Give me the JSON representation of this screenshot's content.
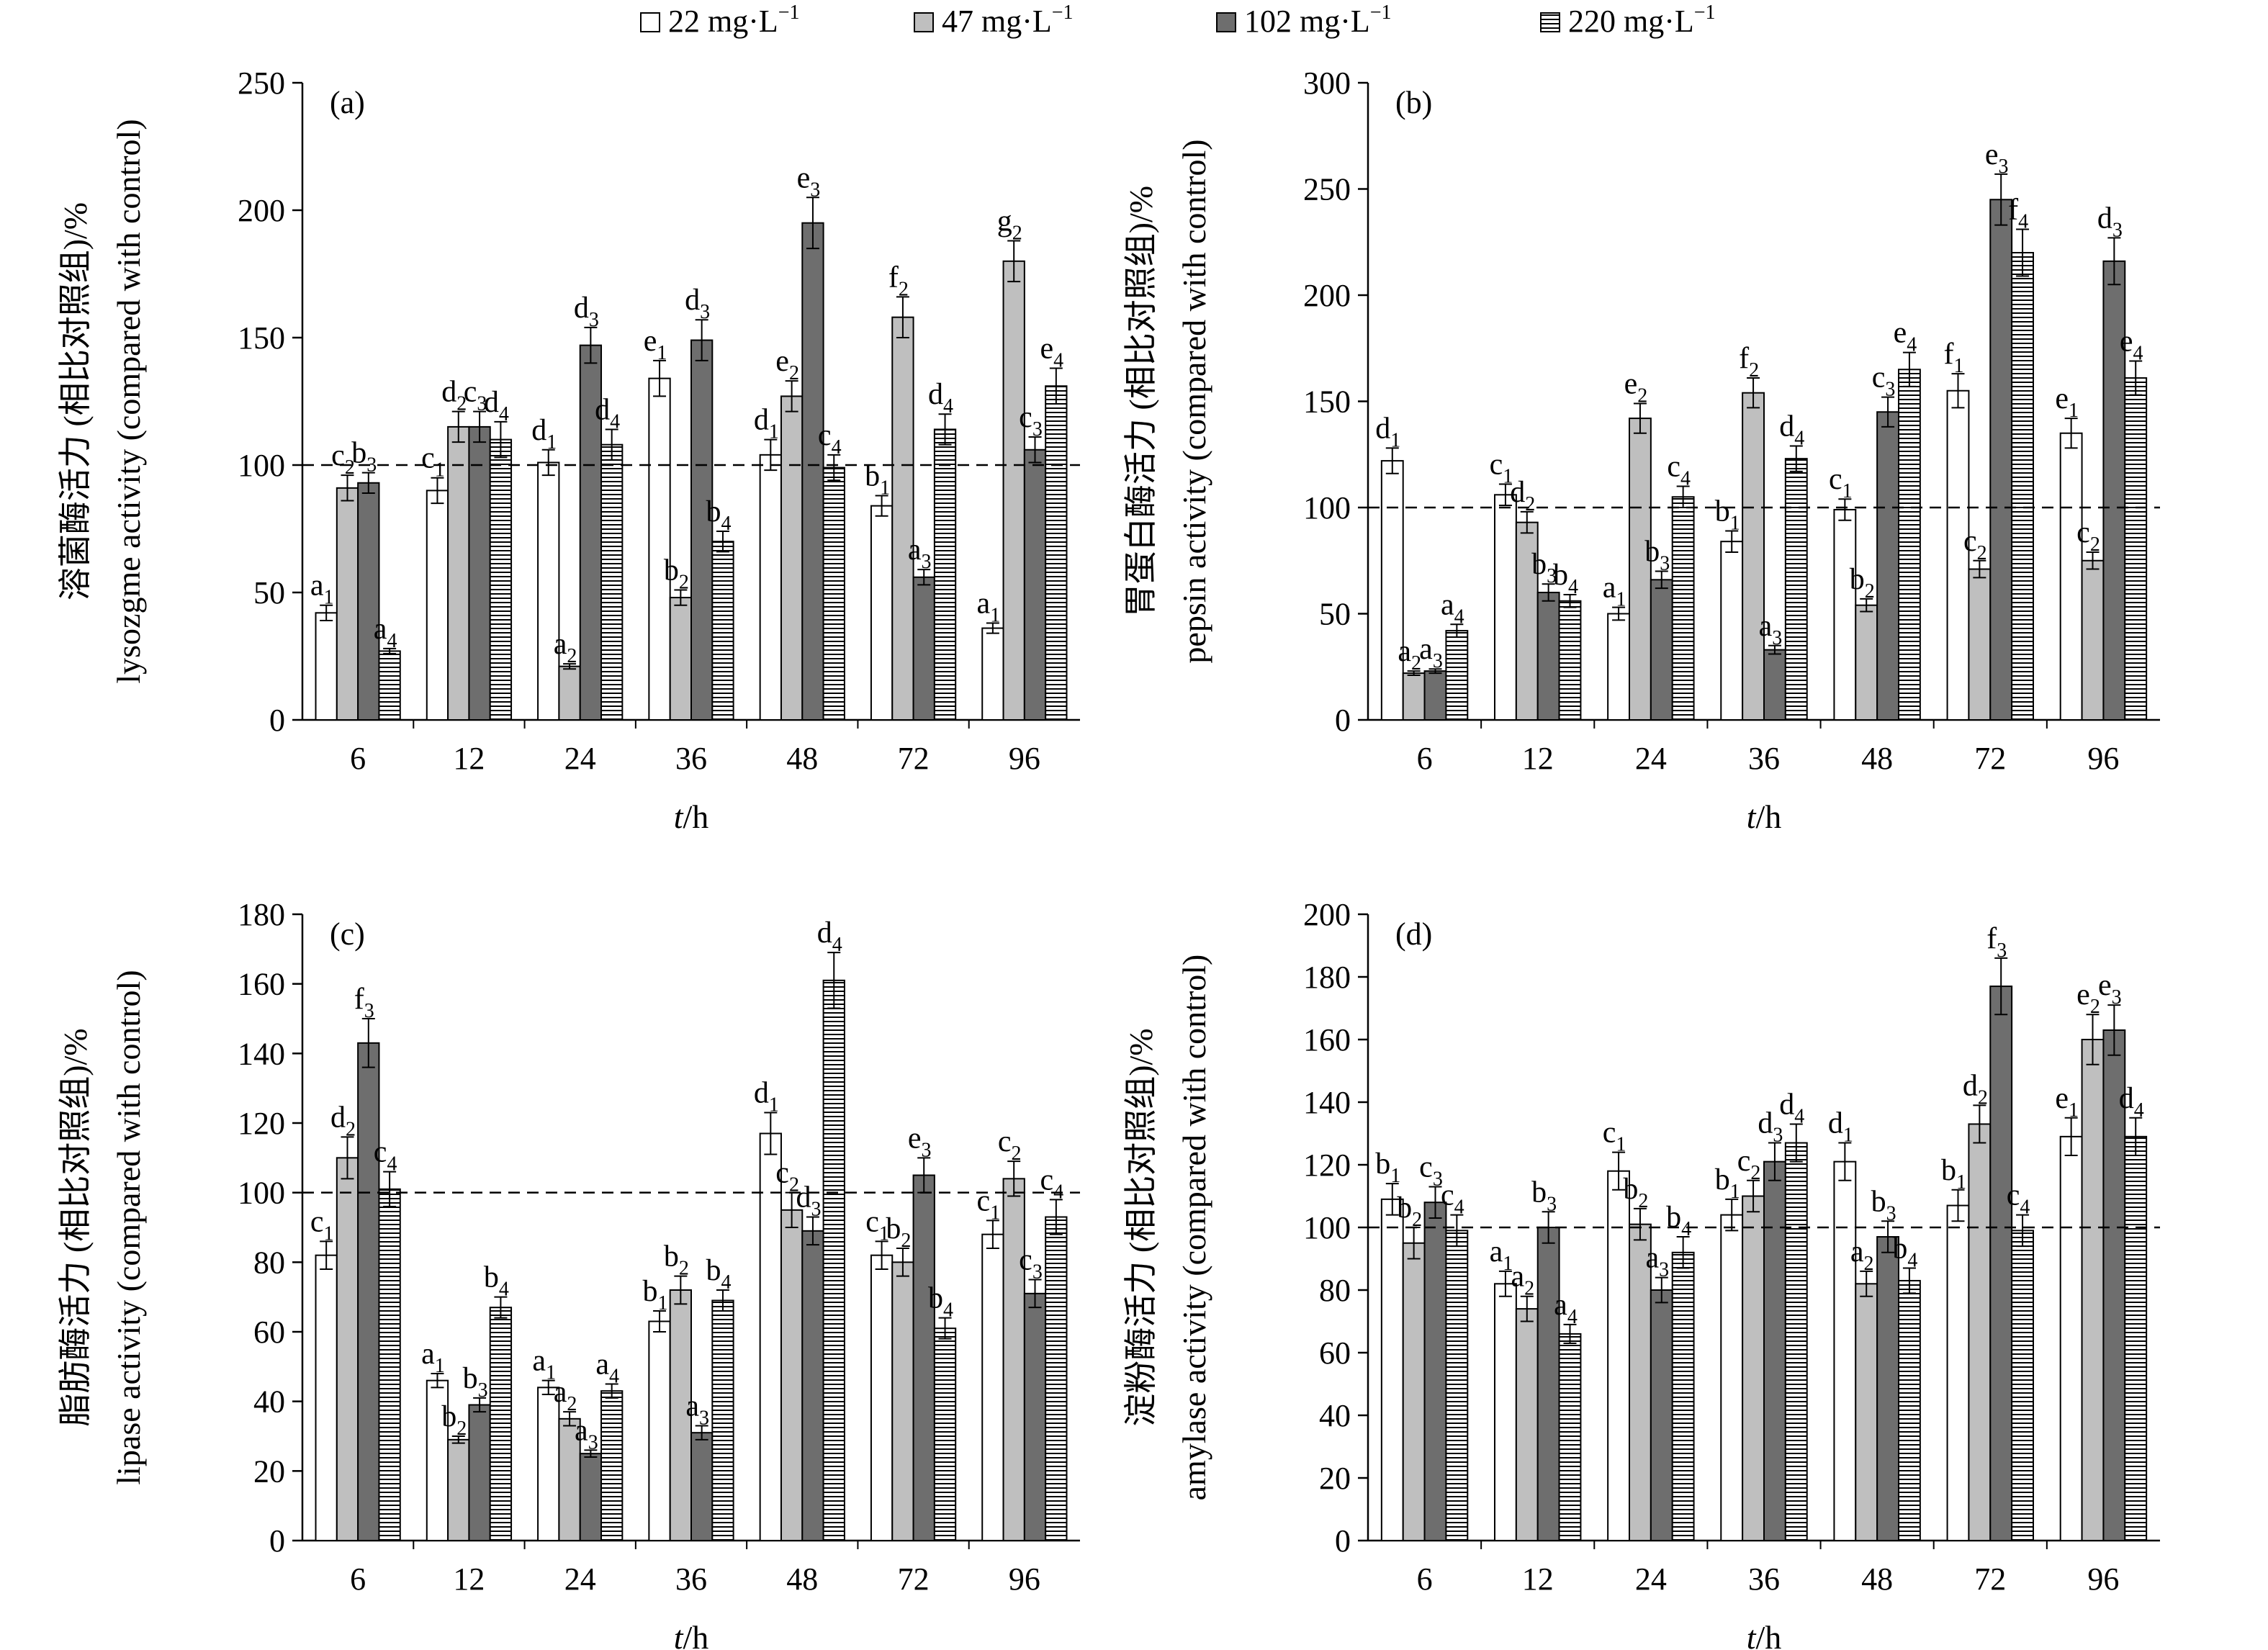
{
  "legend": [
    {
      "label": "22 mg·L",
      "sup": "−1",
      "pattern": "white"
    },
    {
      "label": "47 mg·L",
      "sup": "−1",
      "pattern": "light-gray"
    },
    {
      "label": "102  mg·L",
      "sup": "−1",
      "pattern": "dark-gray"
    },
    {
      "label": "220  mg·L",
      "sup": "−1",
      "pattern": "hatch"
    }
  ],
  "colors": {
    "white": "#ffffff",
    "light-gray": "#bfbfbf",
    "dark-gray": "#6e6e6e",
    "hatch": "#ffffff",
    "stroke": "#000000"
  },
  "chart_data": [
    {
      "type": "bar",
      "panel": "(a)",
      "ylabel_cn": "溶菌酶活力 (相比对照组)/%",
      "ylabel_en": "lysozgme activity (compared with control)",
      "xlabel_italic": "t",
      "xlabel_rest": "/h",
      "categories": [
        "6",
        "12",
        "24",
        "36",
        "48",
        "72",
        "96"
      ],
      "ylim": [
        0,
        250
      ],
      "yticks": [
        0,
        50,
        100,
        150,
        200,
        250
      ],
      "reference_line": 100,
      "series": [
        {
          "values": [
            42,
            90,
            101,
            134,
            104,
            84,
            36
          ],
          "errors": [
            3,
            5,
            5,
            7,
            6,
            4,
            2
          ],
          "labels": [
            [
              "a",
              "1"
            ],
            [
              "c",
              "1"
            ],
            [
              "d",
              "1"
            ],
            [
              "e",
              "1"
            ],
            [
              "d",
              "1"
            ],
            [
              "b",
              "1"
            ],
            [
              "a",
              "1"
            ]
          ]
        },
        {
          "values": [
            91,
            115,
            21,
            48,
            127,
            158,
            180
          ],
          "errors": [
            5,
            6,
            1,
            3,
            6,
            8,
            8
          ],
          "labels": [
            [
              "c",
              "2"
            ],
            [
              "d",
              "2"
            ],
            [
              "a",
              "2"
            ],
            [
              "b",
              "2"
            ],
            [
              "e",
              "2"
            ],
            [
              "f",
              "2"
            ],
            [
              "g",
              "2"
            ]
          ]
        },
        {
          "values": [
            93,
            115,
            147,
            149,
            195,
            56,
            106
          ],
          "errors": [
            4,
            6,
            7,
            8,
            10,
            3,
            5
          ],
          "labels": [
            [
              "b",
              "3"
            ],
            [
              "c",
              "3"
            ],
            [
              "d",
              "3"
            ],
            [
              "d",
              "3"
            ],
            [
              "e",
              "3"
            ],
            [
              "a",
              "3"
            ],
            [
              "c",
              "3"
            ]
          ]
        },
        {
          "values": [
            27,
            110,
            108,
            70,
            99,
            114,
            131
          ],
          "errors": [
            1,
            7,
            6,
            4,
            5,
            6,
            7
          ],
          "labels": [
            [
              "a",
              "4"
            ],
            [
              "d",
              "4"
            ],
            [
              "d",
              "4"
            ],
            [
              "b",
              "4"
            ],
            [
              "c",
              "4"
            ],
            [
              "d",
              "4"
            ],
            [
              "e",
              "4"
            ]
          ]
        }
      ]
    },
    {
      "type": "bar",
      "panel": "(b)",
      "ylabel_cn": "胃蛋白酶活力 (相比对照组)/%",
      "ylabel_en": "pepsin activity (compared with control)",
      "xlabel_italic": "t",
      "xlabel_rest": "/h",
      "categories": [
        "6",
        "12",
        "24",
        "36",
        "48",
        "72",
        "96"
      ],
      "ylim": [
        0,
        300
      ],
      "yticks": [
        0,
        50,
        100,
        150,
        200,
        250,
        300
      ],
      "reference_line": 100,
      "series": [
        {
          "values": [
            122,
            106,
            50,
            84,
            99,
            155,
            135
          ],
          "errors": [
            6,
            5,
            3,
            5,
            5,
            8,
            7
          ],
          "labels": [
            [
              "d",
              "1"
            ],
            [
              "c",
              "1"
            ],
            [
              "a",
              "1"
            ],
            [
              "b",
              "1"
            ],
            [
              "c",
              "1"
            ],
            [
              "f",
              "1"
            ],
            [
              "e",
              "1"
            ]
          ]
        },
        {
          "values": [
            22,
            93,
            142,
            154,
            54,
            71,
            75
          ],
          "errors": [
            1,
            5,
            7,
            7,
            3,
            4,
            4
          ],
          "labels": [
            [
              "a",
              "2"
            ],
            [
              "d",
              "2"
            ],
            [
              "e",
              "2"
            ],
            [
              "f",
              "2"
            ],
            [
              "b",
              "2"
            ],
            [
              "c",
              "2"
            ],
            [
              "c",
              "2"
            ]
          ]
        },
        {
          "values": [
            23,
            60,
            66,
            33,
            145,
            245,
            216
          ],
          "errors": [
            1,
            4,
            4,
            2,
            7,
            12,
            11
          ],
          "labels": [
            [
              "a",
              "3"
            ],
            [
              "b",
              "3"
            ],
            [
              "b",
              "3"
            ],
            [
              "a",
              "3"
            ],
            [
              "c",
              "3"
            ],
            [
              "e",
              "3"
            ],
            [
              "d",
              "3"
            ]
          ]
        },
        {
          "values": [
            42,
            56,
            105,
            123,
            165,
            220,
            161
          ],
          "errors": [
            3,
            3,
            5,
            6,
            8,
            11,
            8
          ],
          "labels": [
            [
              "a",
              "4"
            ],
            [
              "b",
              "4"
            ],
            [
              "c",
              "4"
            ],
            [
              "d",
              "4"
            ],
            [
              "e",
              "4"
            ],
            [
              "f",
              "4"
            ],
            [
              "e",
              "4"
            ]
          ]
        }
      ]
    },
    {
      "type": "bar",
      "panel": "(c)",
      "ylabel_cn": "脂肪酶活力 (相比对照组)/%",
      "ylabel_en": "lipase activity (compared with control)",
      "xlabel_italic": "t",
      "xlabel_rest": "/h",
      "categories": [
        "6",
        "12",
        "24",
        "36",
        "48",
        "72",
        "96"
      ],
      "ylim": [
        0,
        180
      ],
      "yticks": [
        0,
        20,
        40,
        60,
        80,
        100,
        120,
        140,
        160,
        180
      ],
      "reference_line": 100,
      "series": [
        {
          "values": [
            82,
            46,
            44,
            63,
            117,
            82,
            88
          ],
          "errors": [
            4,
            2,
            2,
            3,
            6,
            4,
            4
          ],
          "labels": [
            [
              "c",
              "1"
            ],
            [
              "a",
              "1"
            ],
            [
              "a",
              "1"
            ],
            [
              "b",
              "1"
            ],
            [
              "d",
              "1"
            ],
            [
              "c",
              "1"
            ],
            [
              "c",
              "1"
            ]
          ]
        },
        {
          "values": [
            110,
            29,
            35,
            72,
            95,
            80,
            104
          ],
          "errors": [
            6,
            1,
            2,
            4,
            5,
            4,
            5
          ],
          "labels": [
            [
              "d",
              "2"
            ],
            [
              "b",
              "2"
            ],
            [
              "a",
              "2"
            ],
            [
              "b",
              "2"
            ],
            [
              "c",
              "2"
            ],
            [
              "b",
              "2"
            ],
            [
              "c",
              "2"
            ]
          ]
        },
        {
          "values": [
            143,
            39,
            25,
            31,
            89,
            105,
            71
          ],
          "errors": [
            7,
            2,
            1,
            2,
            4,
            5,
            4
          ],
          "labels": [
            [
              "f",
              "3"
            ],
            [
              "b",
              "3"
            ],
            [
              "a",
              "3"
            ],
            [
              "a",
              "3"
            ],
            [
              "d",
              "3"
            ],
            [
              "e",
              "3"
            ],
            [
              "c",
              "3"
            ]
          ]
        },
        {
          "values": [
            101,
            67,
            43,
            69,
            161,
            61,
            93
          ],
          "errors": [
            5,
            3,
            2,
            3,
            8,
            3,
            5
          ],
          "labels": [
            [
              "c",
              "4"
            ],
            [
              "b",
              "4"
            ],
            [
              "a",
              "4"
            ],
            [
              "b",
              "4"
            ],
            [
              "d",
              "4"
            ],
            [
              "b",
              "4"
            ],
            [
              "c",
              "4"
            ]
          ]
        }
      ]
    },
    {
      "type": "bar",
      "panel": "(d)",
      "ylabel_cn": "淀粉酶活力 (相比对照组)/%",
      "ylabel_en": "amylase activity (compared with control)",
      "xlabel_italic": "t",
      "xlabel_rest": "/h",
      "categories": [
        "6",
        "12",
        "24",
        "36",
        "48",
        "72",
        "96"
      ],
      "ylim": [
        0,
        200
      ],
      "yticks": [
        0,
        20,
        40,
        60,
        80,
        100,
        120,
        140,
        160,
        180,
        200
      ],
      "reference_line": 100,
      "series": [
        {
          "values": [
            109,
            82,
            118,
            104,
            121,
            107,
            129
          ],
          "errors": [
            5,
            4,
            6,
            5,
            6,
            5,
            6
          ],
          "labels": [
            [
              "b",
              "1"
            ],
            [
              "a",
              "1"
            ],
            [
              "c",
              "1"
            ],
            [
              "b",
              "1"
            ],
            [
              "d",
              "1"
            ],
            [
              "b",
              "1"
            ],
            [
              "e",
              "1"
            ]
          ]
        },
        {
          "values": [
            95,
            74,
            101,
            110,
            82,
            133,
            160
          ],
          "errors": [
            5,
            4,
            5,
            5,
            4,
            6,
            8
          ],
          "labels": [
            [
              "b",
              "2"
            ],
            [
              "a",
              "2"
            ],
            [
              "b",
              "2"
            ],
            [
              "c",
              "2"
            ],
            [
              "a",
              "2"
            ],
            [
              "d",
              "2"
            ],
            [
              "e",
              "2"
            ]
          ]
        },
        {
          "values": [
            108,
            100,
            80,
            121,
            97,
            177,
            163
          ],
          "errors": [
            5,
            5,
            4,
            6,
            5,
            9,
            8
          ],
          "labels": [
            [
              "c",
              "3"
            ],
            [
              "b",
              "3"
            ],
            [
              "a",
              "3"
            ],
            [
              "d",
              "3"
            ],
            [
              "b",
              "3"
            ],
            [
              "f",
              "3"
            ],
            [
              "e",
              "3"
            ]
          ]
        },
        {
          "values": [
            99,
            66,
            92,
            127,
            83,
            99,
            129
          ],
          "errors": [
            5,
            3,
            5,
            6,
            4,
            5,
            6
          ],
          "labels": [
            [
              "c",
              "4"
            ],
            [
              "a",
              "4"
            ],
            [
              "b",
              "4"
            ],
            [
              "d",
              "4"
            ],
            [
              "b",
              "4"
            ],
            [
              "c",
              "4"
            ],
            [
              "d",
              "4"
            ]
          ]
        }
      ]
    }
  ]
}
